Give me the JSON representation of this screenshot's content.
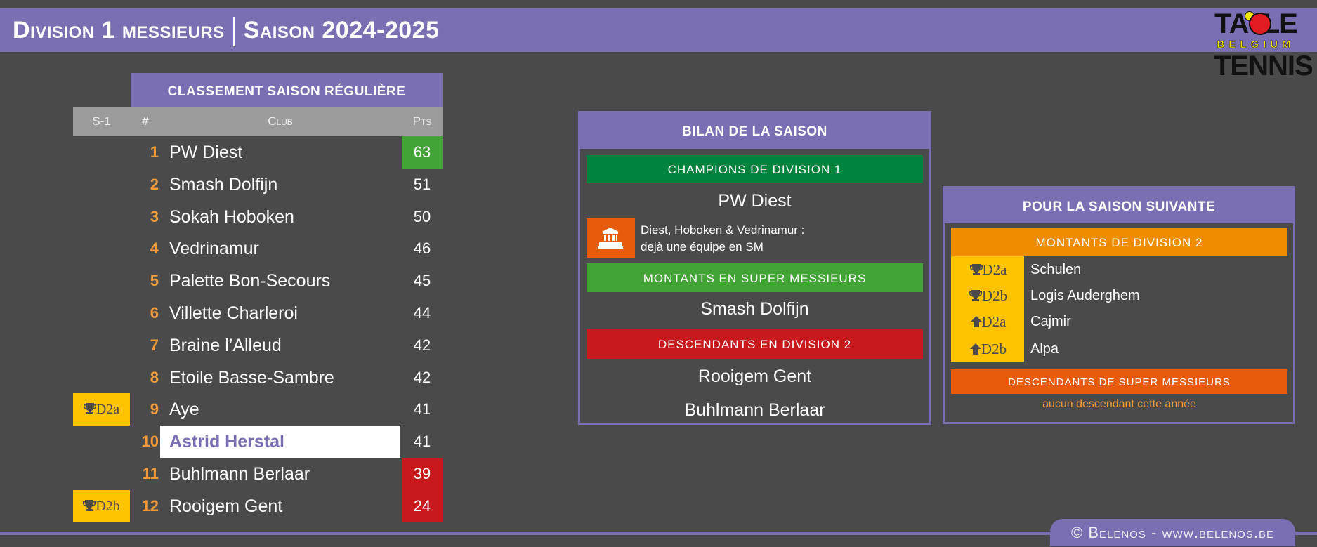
{
  "header": {
    "title_left": "Division 1 messieurs",
    "title_right": "Saison 2024-2025"
  },
  "logo": {
    "line1": "TABLE",
    "line2": "BELGIUM",
    "line3": "TENNIS"
  },
  "standings": {
    "title": "CLASSEMENT SAISON RÉGULIÈRE",
    "columns": {
      "prev": "S-1",
      "rank": "#",
      "club": "Club",
      "pts": "Pts"
    },
    "rows": [
      {
        "prev": "",
        "rank": "1",
        "club": "PW Diest",
        "pts": "63",
        "status": "champion"
      },
      {
        "prev": "",
        "rank": "2",
        "club": "Smash Dolfijn",
        "pts": "51"
      },
      {
        "prev": "",
        "rank": "3",
        "club": "Sokah Hoboken",
        "pts": "50"
      },
      {
        "prev": "",
        "rank": "4",
        "club": "Vedrinamur",
        "pts": "46"
      },
      {
        "prev": "",
        "rank": "5",
        "club": "Palette Bon-Secours",
        "pts": "45"
      },
      {
        "prev": "",
        "rank": "6",
        "club": "Villette Charleroi",
        "pts": "44"
      },
      {
        "prev": "",
        "rank": "7",
        "club": "Braine l’Alleud",
        "pts": "42"
      },
      {
        "prev": "",
        "rank": "8",
        "club": "Etoile Basse-Sambre",
        "pts": "42"
      },
      {
        "prev": "D2a",
        "rank": "9",
        "club": "Aye",
        "pts": "41"
      },
      {
        "prev": "",
        "rank": "10",
        "club": "Astrid Herstal",
        "pts": "41",
        "highlight": true
      },
      {
        "prev": "",
        "rank": "11",
        "club": "Buhlmann Berlaar",
        "pts": "39",
        "status": "relegated"
      },
      {
        "prev": "D2b",
        "rank": "12",
        "club": "Rooigem Gent",
        "pts": "24",
        "status": "relegated"
      }
    ]
  },
  "bilan": {
    "title": "BILAN DE LA SAISON",
    "champions_label": "CHAMPIONS DE DIVISION 1",
    "champion": "PW Diest",
    "note_line1": "Diest, Hoboken & Vedrinamur :",
    "note_line2": "dejà une équipe en SM",
    "promoted_label": "MONTANTS EN SUPER MESSIEURS",
    "promoted": "Smash Dolfijn",
    "relegated_label": "DESCENDANTS EN DIVISION 2",
    "relegated": [
      "Rooigem Gent",
      "Buhlmann Berlaar"
    ]
  },
  "next": {
    "title": "POUR LA SAISON SUIVANTE",
    "up_label": "MONTANTS DE DIVISION 2",
    "up": [
      {
        "tag": "D2a",
        "icon": "trophy",
        "club": "Schulen"
      },
      {
        "tag": "D2b",
        "icon": "trophy",
        "club": "Logis Auderghem"
      },
      {
        "tag": "D2a",
        "icon": "arrow-up",
        "club": "Cajmir"
      },
      {
        "tag": "D2b",
        "icon": "arrow-up",
        "club": "Alpa"
      }
    ],
    "down_label": "DESCENDANTS DE SUPER MESSIEURS",
    "down_none": "aucun descendant cette année"
  },
  "footer": "© Belenos - www.belenos.be",
  "colors": {
    "purple": "#7a6fb2",
    "green": "#43a436",
    "dark_green": "#00843d",
    "red": "#c8191c",
    "orange": "#f08c00",
    "orange_red": "#e85a0c",
    "yellow": "#fdc300"
  }
}
